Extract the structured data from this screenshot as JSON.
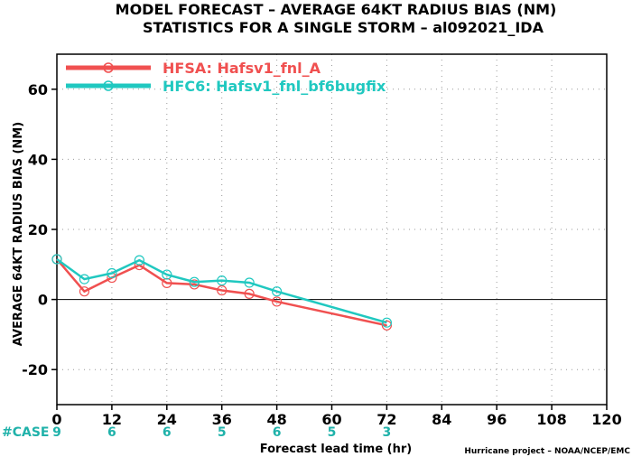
{
  "chart_data": {
    "type": "line",
    "title_line1": "MODEL FORECAST – AVERAGE 64KT RADIUS BIAS (NM)",
    "title_line2": "STATISTICS FOR A SINGLE STORM – al092021_IDA",
    "xlabel": "Forecast lead time (hr)",
    "ylabel": "AVERAGE 64KT RADIUS BIAS (NM)",
    "xlim": [
      0,
      120
    ],
    "ylim": [
      -30,
      70
    ],
    "xticks": [
      0,
      12,
      24,
      36,
      48,
      60,
      72,
      84,
      96,
      108,
      120
    ],
    "yticks": [
      -20,
      0,
      20,
      40,
      60
    ],
    "grid": true,
    "legend_position": "top-left",
    "series": [
      {
        "name": "HFSA: Hafsv1_fnl_A",
        "color": "#f05050",
        "x": [
          0,
          6,
          12,
          18,
          24,
          30,
          36,
          42,
          48,
          72
        ],
        "y": [
          11.5,
          2.3,
          6.2,
          9.8,
          4.7,
          4.3,
          2.6,
          1.6,
          -0.6,
          -7.4
        ]
      },
      {
        "name": "HFC6: Hafsv1_fnl_bf6bugfix",
        "color": "#20c8c0",
        "x": [
          0,
          6,
          12,
          18,
          24,
          30,
          36,
          42,
          48,
          72
        ],
        "y": [
          11.5,
          5.8,
          7.5,
          11.2,
          7.1,
          5.0,
          5.4,
          4.8,
          2.3,
          -6.6
        ]
      }
    ],
    "case_label": "#CASE",
    "cases": [
      {
        "x": 0,
        "n": "9"
      },
      {
        "x": 12,
        "n": "6"
      },
      {
        "x": 24,
        "n": "6"
      },
      {
        "x": 36,
        "n": "5"
      },
      {
        "x": 48,
        "n": "6"
      },
      {
        "x": 60,
        "n": "5"
      },
      {
        "x": 72,
        "n": "3"
      }
    ],
    "credit": "Hurricane project – NOAA/NCEP/EMC"
  }
}
